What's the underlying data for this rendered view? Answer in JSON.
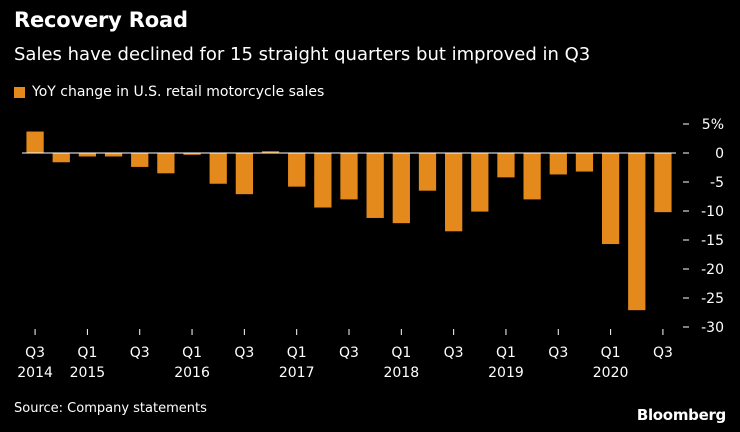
{
  "title": "Recovery Road",
  "subtitle": "Sales have declined for 15 straight quarters but improved in Q3",
  "legend_label": "YoY change in U.S. retail motorcycle sales",
  "source": "Source: Company statements",
  "brand": "Bloomberg",
  "colors": {
    "bar": "#e4891c",
    "background": "#000000",
    "text": "#ffffff",
    "zero_line": "#ffffff"
  },
  "chart_data": {
    "type": "bar",
    "title": "Recovery Road",
    "subtitle": "Sales have declined for 15 straight quarters but improved in Q3",
    "ylabel": "YoY change in U.S. retail motorcycle sales",
    "y_unit": "%",
    "ylim": [
      -30,
      5
    ],
    "yticks": [
      5,
      0,
      -5,
      -10,
      -15,
      -20,
      -25,
      -30
    ],
    "ytick_labels": [
      "5%",
      "0",
      "-5",
      "-10",
      "-15",
      "-20",
      "-25",
      "-30"
    ],
    "grid": false,
    "categories": [
      "Q3 2014",
      "Q4 2014",
      "Q1 2015",
      "Q2 2015",
      "Q3 2015",
      "Q4 2015",
      "Q1 2016",
      "Q2 2016",
      "Q3 2016",
      "Q4 2016",
      "Q1 2017",
      "Q2 2017",
      "Q3 2017",
      "Q4 2017",
      "Q1 2018",
      "Q2 2018",
      "Q3 2018",
      "Q4 2018",
      "Q1 2019",
      "Q2 2019",
      "Q3 2019",
      "Q4 2019",
      "Q1 2020",
      "Q2 2020",
      "Q3 2020"
    ],
    "values": [
      3.7,
      -1.6,
      -0.6,
      -0.6,
      -2.4,
      -3.5,
      -0.3,
      -5.3,
      -7.1,
      0.3,
      -5.8,
      -9.4,
      -8.0,
      -11.2,
      -12.1,
      -6.5,
      -13.5,
      -10.1,
      -4.2,
      -8.0,
      -3.7,
      -3.2,
      -15.7,
      -27.1,
      -10.2
    ],
    "x_tick_labels": [
      {
        "index": 0,
        "quarter": "Q3",
        "year": "2014"
      },
      {
        "index": 2,
        "quarter": "Q1",
        "year": "2015"
      },
      {
        "index": 4,
        "quarter": "Q3",
        "year": ""
      },
      {
        "index": 6,
        "quarter": "Q1",
        "year": "2016"
      },
      {
        "index": 8,
        "quarter": "Q3",
        "year": ""
      },
      {
        "index": 10,
        "quarter": "Q1",
        "year": "2017"
      },
      {
        "index": 12,
        "quarter": "Q3",
        "year": ""
      },
      {
        "index": 14,
        "quarter": "Q1",
        "year": "2018"
      },
      {
        "index": 16,
        "quarter": "Q3",
        "year": ""
      },
      {
        "index": 18,
        "quarter": "Q1",
        "year": "2019"
      },
      {
        "index": 20,
        "quarter": "Q3",
        "year": ""
      },
      {
        "index": 22,
        "quarter": "Q1",
        "year": "2020"
      },
      {
        "index": 24,
        "quarter": "Q3",
        "year": ""
      }
    ]
  }
}
